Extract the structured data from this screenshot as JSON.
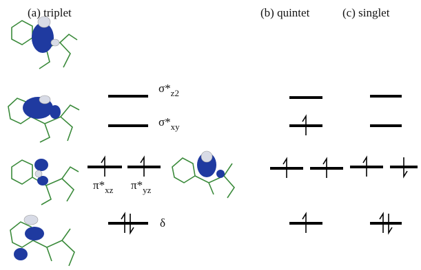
{
  "panels": [
    {
      "label": "(a) triplet"
    },
    {
      "label": "(b) quintet"
    },
    {
      "label": "(c) singlet"
    }
  ],
  "orbitals": [
    {
      "symbol": "σ*",
      "subscript": "z2"
    },
    {
      "symbol": "σ*",
      "subscript": "xy"
    },
    {
      "symbol": "π*",
      "subscript": "xz"
    },
    {
      "symbol": "π*",
      "subscript": "yz"
    },
    {
      "symbol": "δ"
    }
  ]
}
